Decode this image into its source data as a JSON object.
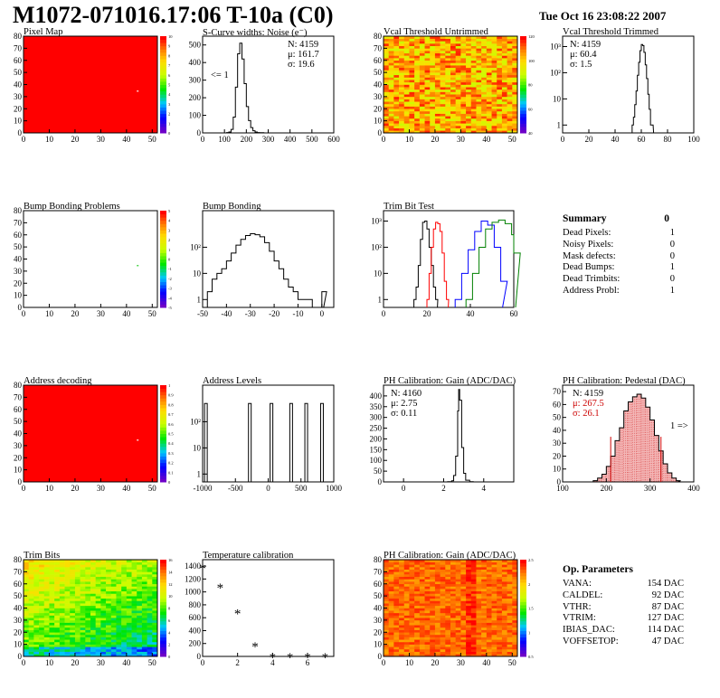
{
  "header": {
    "title": "M1072-071016.17:06 T-10a (C0)",
    "datetime": "Tue Oct 16 23:08:22 2007"
  },
  "panels": {
    "pixel_map": {
      "title": "Pixel Map"
    },
    "scurve": {
      "title": "S-Curve widths: Noise (e⁻)",
      "stats": [
        "N: 4159",
        "μ: 161.7",
        "σ: 19.6"
      ],
      "note": "<= 1"
    },
    "vcal_untrim": {
      "title": "Vcal Threshold Untrimmed"
    },
    "vcal_trim": {
      "title": "Vcal Threshold Trimmed",
      "stats": [
        "N: 4159",
        "μ: 60.4",
        "σ: 1.5"
      ]
    },
    "bump_problems": {
      "title": "Bump Bonding Problems"
    },
    "bump_bonding": {
      "title": "Bump Bonding"
    },
    "trim_bit_test": {
      "title": "Trim Bit Test"
    },
    "address_decoding": {
      "title": "Address decoding"
    },
    "address_levels": {
      "title": "Address Levels"
    },
    "ph_gain": {
      "title": "PH Calibration: Gain (ADC/DAC)",
      "stats": [
        "N: 4160",
        "μ: 2.75",
        "σ: 0.11"
      ]
    },
    "ph_pedestal": {
      "title": "PH Calibration: Pedestal (DAC)",
      "stats": [
        "N: 4159",
        "μ: 267.5",
        "σ: 26.1"
      ],
      "note": "1 =>"
    },
    "trim_bits": {
      "title": "Trim Bits"
    },
    "temperature": {
      "title": "Temperature calibration"
    },
    "ph_gain_map": {
      "title": "PH Calibration: Gain (ADC/DAC)"
    }
  },
  "summary": {
    "title": "Summary",
    "value": "0",
    "rows": [
      {
        "label": "Dead Pixels:",
        "value": "1"
      },
      {
        "label": "Noisy Pixels:",
        "value": "0"
      },
      {
        "label": "Mask defects:",
        "value": "0"
      },
      {
        "label": "Dead Bumps:",
        "value": "1"
      },
      {
        "label": "Dead Trimbits:",
        "value": "0"
      },
      {
        "label": "Address Probl:",
        "value": "1"
      }
    ]
  },
  "op_params": {
    "title": "Op. Parameters",
    "rows": [
      {
        "label": "VANA:",
        "value": "154 DAC"
      },
      {
        "label": "CALDEL:",
        "value": "92 DAC"
      },
      {
        "label": "VTHR:",
        "value": "87 DAC"
      },
      {
        "label": "VTRIM:",
        "value": "127 DAC"
      },
      {
        "label": "IBIAS_DAC:",
        "value": "114 DAC"
      },
      {
        "label": "VOFFSETOP:",
        "value": "47 DAC"
      }
    ]
  },
  "colors": {
    "hot": "#ff0000",
    "bump_green": "#22cc22",
    "trim_red": "#dd0000",
    "trim_blue": "#0000cc",
    "trim_green": "#00cc00",
    "ped_fill": "#cc0000"
  },
  "chart_data": [
    {
      "id": "pixel_map",
      "type": "heatmap",
      "title": "Pixel Map",
      "xlim": [
        0,
        52
      ],
      "ylim": [
        0,
        80
      ],
      "xticks": [
        0,
        10,
        20,
        30,
        40,
        50
      ],
      "yticks": [
        0,
        10,
        20,
        30,
        40,
        50,
        60,
        70,
        80
      ],
      "zticks": [
        0,
        1,
        2,
        3,
        4,
        5,
        6,
        7,
        8,
        9,
        10
      ],
      "fill": "uniform 10",
      "highlight_points": [
        [
          44,
          35
        ]
      ]
    },
    {
      "id": "scurve",
      "type": "histogram",
      "title": "S-Curve widths: Noise (e⁻)",
      "xlim": [
        0,
        600
      ],
      "ylim": [
        0,
        550
      ],
      "xticks": [
        0,
        100,
        200,
        300,
        400,
        500,
        600
      ],
      "yticks": [
        0,
        100,
        200,
        300,
        400,
        500
      ],
      "x": [
        100,
        110,
        120,
        130,
        140,
        150,
        160,
        170,
        180,
        190,
        200,
        210,
        220,
        230,
        240,
        250,
        260,
        270,
        280,
        290,
        300
      ],
      "y": [
        0,
        2,
        5,
        20,
        90,
        260,
        450,
        510,
        420,
        280,
        150,
        70,
        30,
        12,
        5,
        2,
        1,
        1,
        0,
        0,
        0
      ]
    },
    {
      "id": "vcal_untrim",
      "type": "heatmap",
      "title": "Vcal Threshold Untrimmed",
      "xlim": [
        0,
        52
      ],
      "ylim": [
        0,
        80
      ],
      "xticks": [
        0,
        10,
        20,
        30,
        40,
        50
      ],
      "yticks": [
        0,
        10,
        20,
        30,
        40,
        50,
        60,
        70,
        80
      ],
      "zticks": [
        40,
        60,
        80,
        100,
        120
      ]
    },
    {
      "id": "vcal_trim",
      "type": "histogram",
      "title": "Vcal Threshold Trimmed",
      "xlim": [
        0,
        100
      ],
      "log_y": true,
      "xticks": [
        0,
        20,
        40,
        60,
        80,
        100
      ],
      "yticks": [
        "1",
        "10",
        "10²",
        "10³"
      ],
      "x": [
        53,
        54,
        55,
        56,
        57,
        58,
        59,
        60,
        61,
        62,
        63,
        64,
        65,
        66,
        67,
        68
      ],
      "y": [
        1,
        2,
        6,
        20,
        80,
        250,
        700,
        1200,
        1100,
        600,
        200,
        60,
        15,
        4,
        1,
        1
      ]
    },
    {
      "id": "bump_problems",
      "type": "heatmap",
      "title": "Bump Bonding Problems",
      "xlim": [
        0,
        52
      ],
      "ylim": [
        0,
        80
      ],
      "xticks": [
        0,
        10,
        20,
        30,
        40,
        50
      ],
      "yticks": [
        0,
        10,
        20,
        30,
        40,
        50,
        60,
        70,
        80
      ],
      "zticks": [
        -5,
        -4,
        -3,
        -2,
        -1,
        0,
        1,
        2,
        3,
        4,
        5
      ],
      "highlight_points": [
        [
          44,
          35
        ]
      ]
    },
    {
      "id": "bump_bonding",
      "type": "histogram",
      "title": "Bump Bonding",
      "xlim": [
        -50,
        5
      ],
      "log_y": true,
      "xticks": [
        -50,
        -40,
        -30,
        -20,
        -10,
        0
      ],
      "yticks": [
        "1",
        "10",
        "10²"
      ],
      "x": [
        -48,
        -46,
        -44,
        -42,
        -40,
        -38,
        -36,
        -34,
        -32,
        -30,
        -28,
        -26,
        -24,
        -22,
        -20,
        -18,
        -16,
        -14,
        -12,
        -10,
        -8,
        -6,
        -4,
        -2,
        0
      ],
      "y": [
        2,
        6,
        10,
        15,
        30,
        60,
        120,
        200,
        280,
        330,
        300,
        250,
        150,
        70,
        30,
        15,
        6,
        3,
        2,
        1,
        1,
        1,
        0,
        0,
        2
      ]
    },
    {
      "id": "trim_bit_test",
      "type": "histogram",
      "title": "Trim Bit Test",
      "xlim": [
        0,
        60
      ],
      "log_y": true,
      "xticks": [
        0,
        20,
        40,
        60
      ],
      "yticks": [
        "1",
        "10",
        "10²",
        "10³"
      ],
      "series": [
        {
          "color": "black",
          "x": [
            14,
            15,
            16,
            17,
            18,
            19,
            20,
            21,
            22,
            23,
            24
          ],
          "y": [
            1,
            3,
            20,
            200,
            900,
            1000,
            500,
            100,
            20,
            3,
            1
          ]
        },
        {
          "color": "red",
          "x": [
            20,
            21,
            22,
            23,
            24,
            25,
            26,
            27,
            28,
            29
          ],
          "y": [
            1,
            10,
            100,
            500,
            900,
            800,
            400,
            60,
            5,
            1
          ]
        },
        {
          "color": "blue",
          "x": [
            33,
            36,
            39,
            42,
            45,
            48,
            51,
            54
          ],
          "y": [
            1,
            10,
            80,
            400,
            1000,
            700,
            100,
            5
          ]
        },
        {
          "color": "green",
          "x": [
            38,
            41,
            44,
            47,
            50,
            53,
            56,
            59,
            60
          ],
          "y": [
            1,
            10,
            100,
            500,
            900,
            1100,
            800,
            300,
            60
          ]
        }
      ]
    },
    {
      "id": "address_decoding",
      "type": "heatmap",
      "title": "Address decoding",
      "xlim": [
        0,
        52
      ],
      "ylim": [
        0,
        80
      ],
      "xticks": [
        0,
        10,
        20,
        30,
        40,
        50
      ],
      "yticks": [
        0,
        10,
        20,
        30,
        40,
        50,
        60,
        70,
        80
      ],
      "zticks": [
        0,
        0.1,
        0.2,
        0.3,
        0.4,
        0.5,
        0.6,
        0.7,
        0.8,
        0.9,
        1
      ],
      "fill": "uniform 1",
      "highlight_points": [
        [
          44,
          35
        ]
      ]
    },
    {
      "id": "address_levels",
      "type": "histogram",
      "title": "Address Levels",
      "xlim": [
        -1000,
        1000
      ],
      "log_y": true,
      "xticks": [
        -1000,
        -500,
        0,
        500,
        1000
      ],
      "yticks": [
        "1",
        "10",
        "10²"
      ],
      "peaks": [
        -950,
        -280,
        50,
        350,
        580,
        820
      ],
      "peak_height": 500
    },
    {
      "id": "ph_gain",
      "type": "histogram",
      "title": "PH Calibration: Gain (ADC/DAC)",
      "xlim": [
        -1,
        5.5
      ],
      "ylim": [
        0,
        450
      ],
      "xticks": [
        0,
        2,
        4
      ],
      "yticks": [
        0,
        50,
        100,
        150,
        200,
        250,
        300,
        350,
        400
      ],
      "x": [
        2.2,
        2.4,
        2.5,
        2.6,
        2.7,
        2.75,
        2.8,
        2.9,
        3.0,
        3.1,
        3.3
      ],
      "y": [
        1,
        5,
        30,
        120,
        330,
        430,
        380,
        160,
        40,
        8,
        1
      ]
    },
    {
      "id": "ph_pedestal",
      "type": "histogram",
      "title": "PH Calibration: Pedestal (DAC)",
      "xlim": [
        100,
        400
      ],
      "ylim": [
        0,
        75
      ],
      "xticks": [
        100,
        200,
        300,
        400
      ],
      "yticks": [
        0,
        10,
        20,
        30,
        40,
        50,
        60,
        70
      ],
      "x": [
        170,
        180,
        190,
        200,
        210,
        220,
        230,
        240,
        250,
        260,
        270,
        280,
        290,
        300,
        310,
        320,
        330,
        340,
        350,
        360
      ],
      "y": [
        1,
        3,
        6,
        12,
        20,
        32,
        42,
        55,
        62,
        66,
        68,
        65,
        58,
        48,
        36,
        24,
        14,
        7,
        3,
        1
      ],
      "cut_lines": [
        210,
        325
      ]
    },
    {
      "id": "trim_bits",
      "type": "heatmap",
      "title": "Trim Bits",
      "xlim": [
        0,
        52
      ],
      "ylim": [
        0,
        80
      ],
      "xticks": [
        0,
        10,
        20,
        30,
        40,
        50
      ],
      "yticks": [
        0,
        10,
        20,
        30,
        40,
        50,
        60,
        70,
        80
      ],
      "zticks": [
        0,
        2,
        4,
        6,
        8,
        10,
        12,
        14,
        16
      ]
    },
    {
      "id": "temperature",
      "type": "scatter",
      "title": "Temperature calibration",
      "xlim": [
        0,
        7.5
      ],
      "ylim": [
        0,
        1500
      ],
      "xticks": [
        0,
        2,
        4,
        6,
        8
      ],
      "yticks": [
        0,
        200,
        400,
        600,
        800,
        1000,
        1200,
        1400
      ],
      "x": [
        0,
        1,
        2,
        3,
        4,
        5,
        6,
        7
      ],
      "y": [
        1380,
        1080,
        680,
        170,
        0,
        0,
        0,
        0
      ]
    },
    {
      "id": "ph_gain_map",
      "type": "heatmap",
      "title": "PH Calibration: Gain (ADC/DAC)",
      "xlim": [
        0,
        52
      ],
      "ylim": [
        0,
        80
      ],
      "xticks": [
        0,
        10,
        20,
        30,
        40,
        50
      ],
      "yticks": [
        0,
        10,
        20,
        30,
        40,
        50,
        60,
        70,
        80
      ],
      "zticks": [
        0.5,
        1,
        1.5,
        2,
        2.5
      ]
    }
  ]
}
